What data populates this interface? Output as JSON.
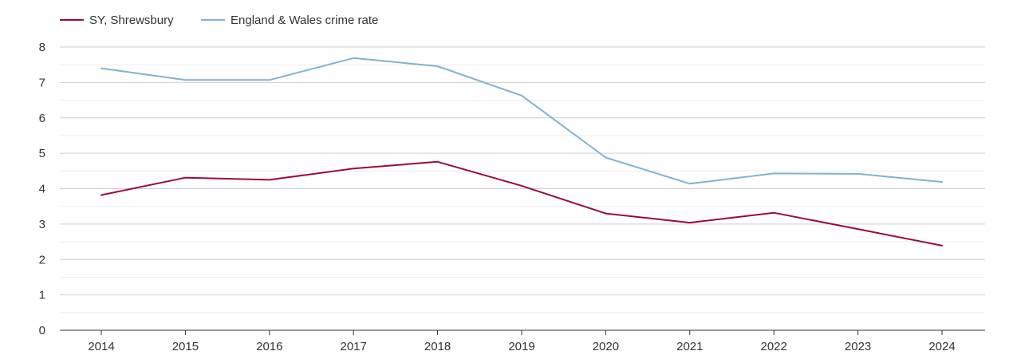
{
  "chart_data": {
    "type": "line",
    "title": "",
    "xlabel": "",
    "ylabel": "",
    "categories": [
      "2014",
      "2015",
      "2016",
      "2017",
      "2018",
      "2019",
      "2020",
      "2021",
      "2022",
      "2023",
      "2024"
    ],
    "ylim": [
      0,
      8
    ],
    "yticks": [
      "0",
      "1",
      "2",
      "3",
      "4",
      "5",
      "6",
      "7",
      "8"
    ],
    "grid": true,
    "legend_position": "top-left",
    "series": [
      {
        "name": "SY, Shrewsbury",
        "color": "#9b0c33",
        "values": [
          3.82,
          4.31,
          4.25,
          4.57,
          4.76,
          4.08,
          3.3,
          3.04,
          3.32,
          2.86,
          2.39
        ]
      },
      {
        "name": "England & Wales crime rate",
        "color": "#7fb3d1",
        "values": [
          7.4,
          7.07,
          7.07,
          7.69,
          7.46,
          6.63,
          4.88,
          4.14,
          4.43,
          4.42,
          4.19
        ]
      }
    ]
  }
}
